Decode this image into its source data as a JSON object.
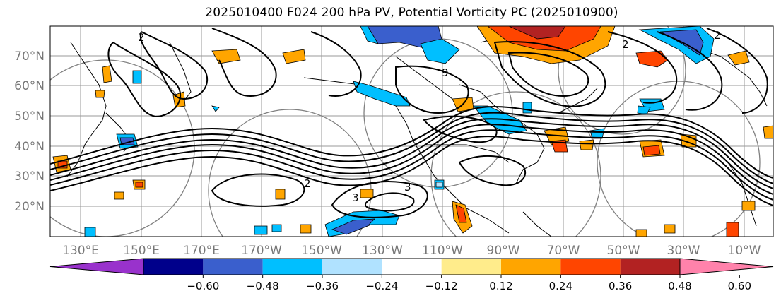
{
  "title": "2025010400 F024 200 hPa PV, Potential Vorticity PC (2025010900)",
  "lat_labels": [
    "70°N",
    "60°N",
    "50°N",
    "40°N",
    "30°N",
    "20°N"
  ],
  "lon_labels": [
    "130°E",
    "150°E",
    "170°E",
    "170°W",
    "150°W",
    "130°W",
    "110°W",
    "90°W",
    "70°W",
    "50°W",
    "30°W",
    "10°W"
  ],
  "colorbar": {
    "ticks": [
      "−0.60",
      "−0.48",
      "−0.36",
      "−0.24",
      "−0.12",
      "0.12",
      "0.24",
      "0.36",
      "0.48",
      "0.60"
    ],
    "colors": [
      "#9932cc",
      "#00008b",
      "#3a5fcd",
      "#00bfff",
      "#b0e2ff",
      "#ffffff",
      "#ffec8b",
      "#ffa500",
      "#ff4500",
      "#b22222",
      "#ff82ab"
    ]
  },
  "contour_labels": [
    "2",
    "2",
    "9",
    "3",
    "2",
    "3",
    "2"
  ]
}
